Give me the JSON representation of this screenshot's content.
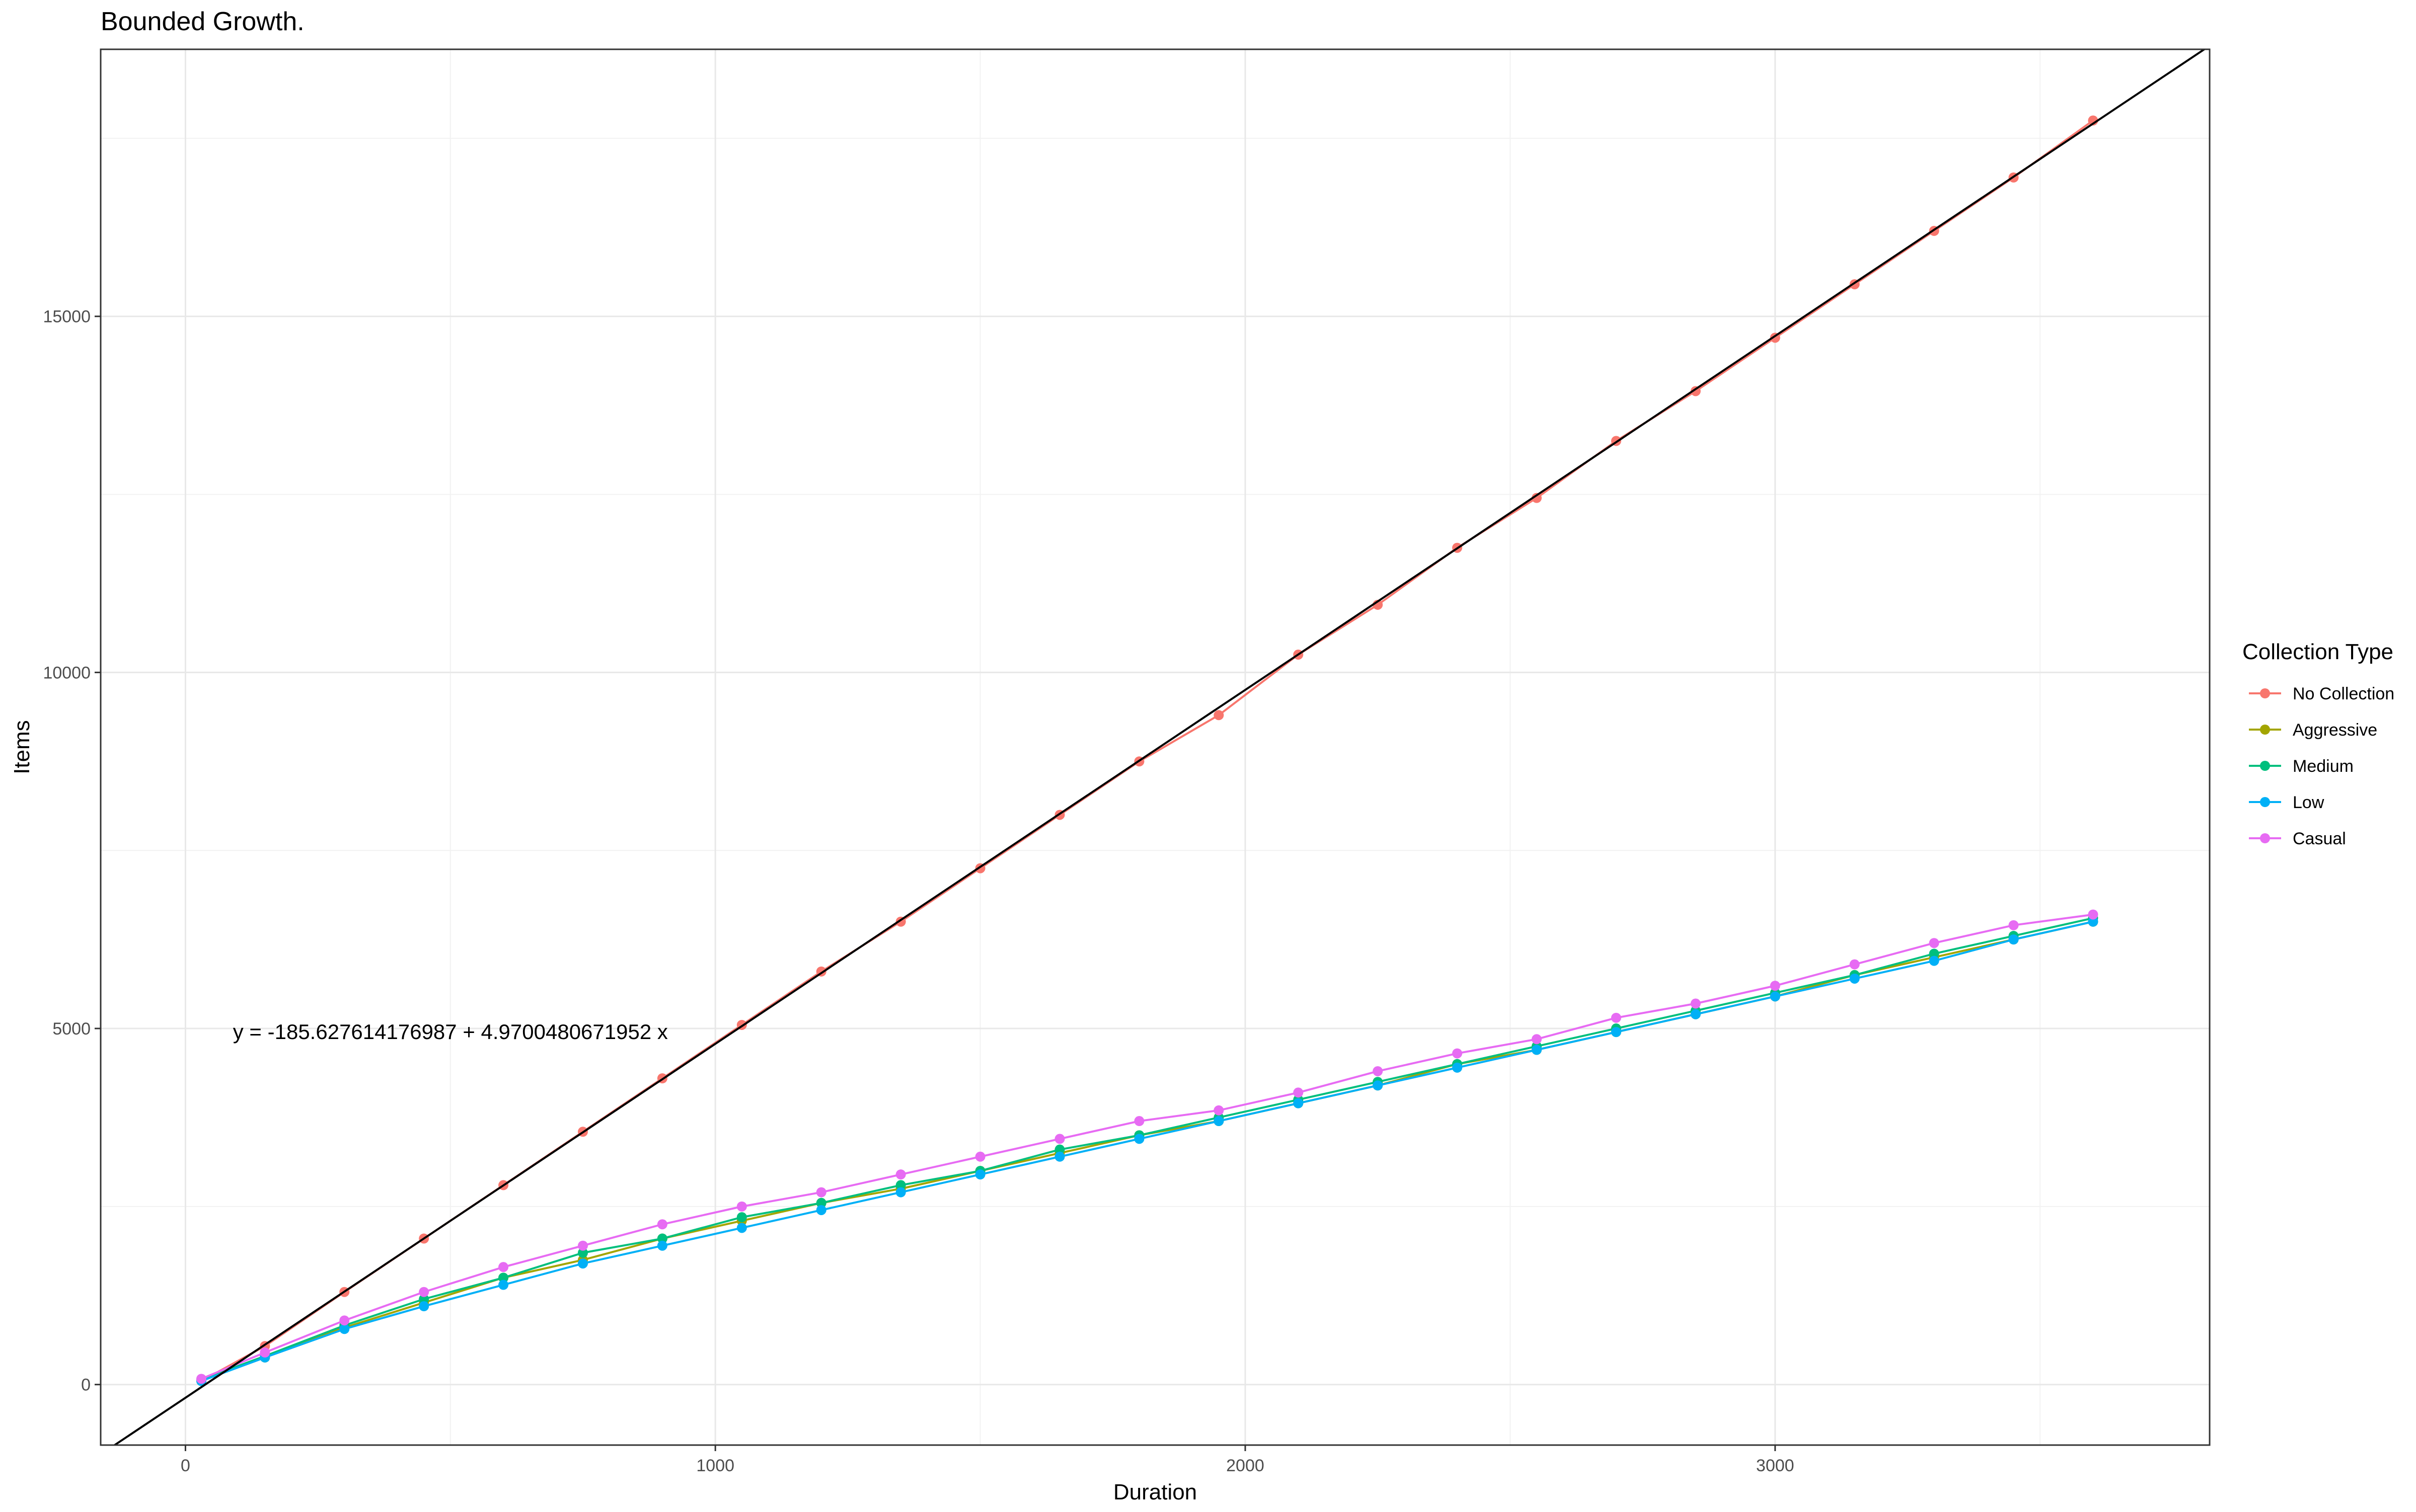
{
  "chart_data": {
    "type": "scatter",
    "title": "Bounded Growth.",
    "xlabel": "Duration",
    "ylabel": "Items",
    "xlim": [
      -160,
      3820
    ],
    "ylim": [
      -850,
      18750
    ],
    "xticks": [
      0,
      1000,
      2000,
      3000
    ],
    "yticks": [
      0,
      5000,
      10000,
      15000
    ],
    "grid": true,
    "legend": {
      "title": "Collection Type",
      "position": "right"
    },
    "regression_line": {
      "intercept": -185.627614176987,
      "slope": 4.9700480671952
    },
    "annotation": {
      "text": "y = -185.627614176987 + 4.9700480671952 x",
      "x": 500,
      "y": 4950
    },
    "series": [
      {
        "name": "No Collection",
        "color": "#F8766D",
        "x": [
          30,
          150,
          300,
          450,
          600,
          750,
          900,
          1050,
          1200,
          1350,
          1500,
          1650,
          1800,
          1950,
          2100,
          2250,
          2400,
          2550,
          2700,
          2850,
          3000,
          3150,
          3300,
          3450,
          3600
        ],
        "y": [
          50,
          540,
          1300,
          2050,
          2800,
          3550,
          4300,
          5050,
          5800,
          6500,
          7250,
          8000,
          8750,
          9400,
          10250,
          10950,
          11750,
          12450,
          13250,
          13950,
          14700,
          15450,
          16200,
          16950,
          17750
        ]
      },
      {
        "name": "Aggressive",
        "color": "#A3A500",
        "x": [
          30,
          150,
          300,
          450,
          600,
          750,
          900,
          1050,
          1200,
          1350,
          1500,
          1650,
          1800,
          1950,
          2100,
          2250,
          2400,
          2550,
          2700,
          2850,
          3000,
          3150,
          3300,
          3450,
          3600
        ],
        "y": [
          60,
          380,
          800,
          1150,
          1500,
          1750,
          2050,
          2300,
          2550,
          2750,
          3000,
          3250,
          3500,
          3700,
          3950,
          4200,
          4500,
          4700,
          4950,
          5200,
          5450,
          5750,
          6000,
          6250,
          6500
        ]
      },
      {
        "name": "Medium",
        "color": "#00BF7D",
        "x": [
          30,
          150,
          300,
          450,
          600,
          750,
          900,
          1050,
          1200,
          1350,
          1500,
          1650,
          1800,
          1950,
          2100,
          2250,
          2400,
          2550,
          2700,
          2850,
          3000,
          3150,
          3300,
          3450,
          3600
        ],
        "y": [
          70,
          400,
          830,
          1200,
          1500,
          1850,
          2050,
          2350,
          2550,
          2800,
          3000,
          3300,
          3500,
          3750,
          4000,
          4250,
          4500,
          4750,
          5000,
          5250,
          5500,
          5750,
          6050,
          6300,
          6550
        ]
      },
      {
        "name": "Low",
        "color": "#00B0F6",
        "x": [
          30,
          150,
          300,
          450,
          600,
          750,
          900,
          1050,
          1200,
          1350,
          1500,
          1650,
          1800,
          1950,
          2100,
          2250,
          2400,
          2550,
          2700,
          2850,
          3000,
          3150,
          3300,
          3450,
          3600
        ],
        "y": [
          50,
          380,
          780,
          1100,
          1400,
          1700,
          1950,
          2200,
          2450,
          2700,
          2950,
          3200,
          3450,
          3700,
          3950,
          4200,
          4450,
          4700,
          4950,
          5200,
          5450,
          5700,
          5950,
          6250,
          6500
        ]
      },
      {
        "name": "Casual",
        "color": "#E76BF3",
        "x": [
          30,
          150,
          300,
          450,
          600,
          750,
          900,
          1050,
          1200,
          1350,
          1500,
          1650,
          1800,
          1950,
          2100,
          2250,
          2400,
          2550,
          2700,
          2850,
          3000,
          3150,
          3300,
          3450,
          3600
        ],
        "y": [
          80,
          450,
          900,
          1300,
          1650,
          1950,
          2250,
          2500,
          2700,
          2950,
          3200,
          3450,
          3700,
          3850,
          4100,
          4400,
          4650,
          4850,
          5150,
          5350,
          5600,
          5900,
          6200,
          6450,
          6600
        ]
      }
    ]
  }
}
